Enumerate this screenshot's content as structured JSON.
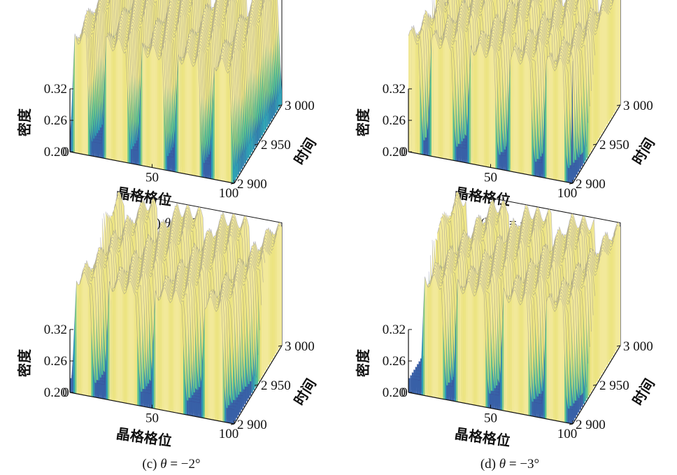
{
  "figure": {
    "panels": [
      {
        "caption_prefix": "(a) ",
        "theta_symbol": "θ",
        "caption_suffix": " = 0°",
        "theta_deg": 0,
        "zlabel": "密度",
        "xlabel": "晶格格位",
        "ylabel": "时间",
        "ztick_labels": [
          "0.32",
          "0.26",
          "0.20"
        ],
        "xtick_labels": [
          "0",
          "50",
          "100"
        ],
        "ytick_labels": [
          "2 900",
          "2 950",
          "3 000"
        ]
      },
      {
        "caption_prefix": "(b) ",
        "theta_symbol": "θ",
        "caption_suffix": " = −1°",
        "theta_deg": -1,
        "zlabel": "密度",
        "xlabel": "晶格格位",
        "ylabel": "时间",
        "ztick_labels": [
          "0.32",
          "0.26",
          "0.20"
        ],
        "xtick_labels": [
          "0",
          "50",
          "100"
        ],
        "ytick_labels": [
          "2 900",
          "2 950",
          "3 000"
        ]
      },
      {
        "caption_prefix": "(c) ",
        "theta_symbol": "θ",
        "caption_suffix": " = −2°",
        "theta_deg": -2,
        "zlabel": "密度",
        "xlabel": "晶格格位",
        "ylabel": "时间",
        "ztick_labels": [
          "0.32",
          "0.26",
          "0.20"
        ],
        "xtick_labels": [
          "0",
          "50",
          "100"
        ],
        "ytick_labels": [
          "2 900",
          "2 950",
          "3 000"
        ]
      },
      {
        "caption_prefix": "(d) ",
        "theta_symbol": "θ",
        "caption_suffix": " = −3°",
        "theta_deg": -3,
        "zlabel": "密度",
        "xlabel": "晶格格位",
        "ylabel": "时间",
        "ztick_labels": [
          "0.32",
          "0.26",
          "0.20"
        ],
        "xtick_labels": [
          "0",
          "50",
          "100"
        ],
        "ytick_labels": [
          "2 900",
          "2 950",
          "3 000"
        ]
      }
    ]
  },
  "colors": {
    "low": "#3f3f9f",
    "mid_low": "#2aa0b6",
    "mid_high": "#58c48e",
    "high": "#e8e070",
    "peak": "#f2e99a",
    "axis": "#111111"
  },
  "chart_data": [
    {
      "type": "surface",
      "panel": "a",
      "x_range": [
        0,
        100
      ],
      "y_range": [
        2900,
        3000
      ],
      "z_range": [
        0.2,
        0.32
      ],
      "x_ticks": [
        0,
        50,
        100
      ],
      "y_ticks": [
        2900,
        2950,
        3000
      ],
      "z_ticks": [
        0.2,
        0.26,
        0.32
      ],
      "bands": [
        {
          "x_start": 3,
          "x_end": 10
        },
        {
          "x_start": 22,
          "x_end": 34
        },
        {
          "x_start": 44,
          "x_end": 56
        },
        {
          "x_start": 66,
          "x_end": 78
        },
        {
          "x_start": 88,
          "x_end": 97
        }
      ],
      "drift_per_step": 0.0,
      "z_low": 0.2,
      "z_high": 0.32
    },
    {
      "type": "surface",
      "panel": "b",
      "x_range": [
        0,
        100
      ],
      "y_range": [
        2900,
        3000
      ],
      "z_range": [
        0.2,
        0.32
      ],
      "x_ticks": [
        0,
        50,
        100
      ],
      "y_ticks": [
        2900,
        2950,
        3000
      ],
      "z_ticks": [
        0.2,
        0.26,
        0.32
      ],
      "bands": [
        {
          "x_start": 0,
          "x_end": 6
        },
        {
          "x_start": 14,
          "x_end": 26
        },
        {
          "x_start": 38,
          "x_end": 52
        },
        {
          "x_start": 62,
          "x_end": 74
        },
        {
          "x_start": 84,
          "x_end": 94
        }
      ],
      "drift_per_step": 0.12,
      "z_low": 0.2,
      "z_high": 0.32
    },
    {
      "type": "surface",
      "panel": "c",
      "x_range": [
        0,
        100
      ],
      "y_range": [
        2900,
        3000
      ],
      "z_range": [
        0.2,
        0.32
      ],
      "x_ticks": [
        0,
        50,
        100
      ],
      "y_ticks": [
        2900,
        2950,
        3000
      ],
      "z_ticks": [
        0.2,
        0.26,
        0.32
      ],
      "bands": [
        {
          "x_start": 4,
          "x_end": 12
        },
        {
          "x_start": 24,
          "x_end": 40
        },
        {
          "x_start": 52,
          "x_end": 68
        },
        {
          "x_start": 82,
          "x_end": 92
        }
      ],
      "drift_per_step": 0.12,
      "z_low": 0.2,
      "z_high": 0.32
    },
    {
      "type": "surface",
      "panel": "d",
      "x_range": [
        0,
        100
      ],
      "y_range": [
        2900,
        3000
      ],
      "z_range": [
        0.2,
        0.32
      ],
      "x_ticks": [
        0,
        50,
        100
      ],
      "y_ticks": [
        2900,
        2950,
        3000
      ],
      "z_ticks": [
        0.2,
        0.26,
        0.32
      ],
      "bands": [
        {
          "x_start": 10,
          "x_end": 20
        },
        {
          "x_start": 30,
          "x_end": 46
        },
        {
          "x_start": 58,
          "x_end": 72
        },
        {
          "x_start": 84,
          "x_end": 94
        }
      ],
      "drift_per_step": 0.12,
      "z_low": 0.2,
      "z_high": 0.32
    }
  ]
}
